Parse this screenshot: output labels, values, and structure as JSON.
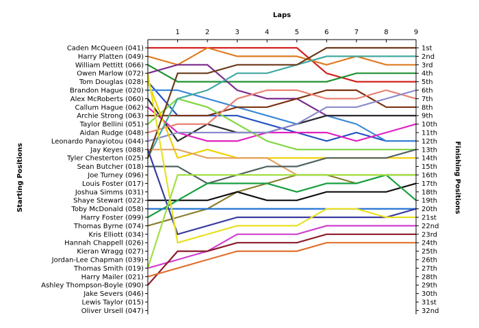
{
  "chart_data": {
    "type": "line",
    "title": "",
    "xlabel": "Laps",
    "ylabel_left": "Starting Positions",
    "ylabel_right": "Finishing Positions",
    "x_ticks": [
      1,
      2,
      3,
      4,
      5,
      6,
      7,
      8,
      9
    ],
    "xlim": [
      0,
      9
    ],
    "ylim": [
      1,
      32
    ],
    "y_inverted": true,
    "legend": "none",
    "starting_labels": [
      "Caden McQueen (041)",
      "Harry Platten (049)",
      "William Pettitt (066)",
      "Owen Marlow (072)",
      "Tom Douglas (028)",
      "Brandon Hague (020)",
      "Alex McRoberts (060)",
      "Callum Hague (062)",
      "Archie Strong (063)",
      "Taylor Bellini (051)",
      "Aidan Rudge (048)",
      "Leonardo Panayiotou (044)",
      "Jay Keyes (088)",
      "Tyler Chesterton (025)",
      "Sean Butcher (018)",
      "Joe Turney (096)",
      "Louis Foster (017)",
      "Joshua Simms (031)",
      "Shaye Stewart (022)",
      "Toby McDonald (058)",
      "Harry Foster (099)",
      "Thomas Byrne (074)",
      "Kris Elliott (034)",
      "Hannah Chappell (026)",
      "Kieran Wragg (027)",
      "Jordan-Lee Chapman (039)",
      "Thomas Smith (019)",
      "Harry Mailer (021)",
      "Ashley Thompson-Boyle (090)",
      "Jake Severs (046)",
      "Lewis Taylor (015)",
      "Oliver Ursell (047)"
    ],
    "finishing_labels": [
      "1st",
      "2nd",
      "3rd",
      "4th",
      "5th",
      "6th",
      "7th",
      "8th",
      "9th",
      "10th",
      "11th",
      "12th",
      "13th",
      "14th",
      "15th",
      "16th",
      "17th",
      "18th",
      "19th",
      "20th",
      "21st",
      "22nd",
      "23rd",
      "24th",
      "25th",
      "26th",
      "27th",
      "28th",
      "29th",
      "30th",
      "31st",
      "32nd"
    ],
    "series": [
      {
        "color": "#d22020",
        "positions": [
          1,
          1,
          1,
          1,
          1,
          1,
          4,
          5,
          5,
          5
        ]
      },
      {
        "color": "#e07b20",
        "positions": [
          2,
          3,
          1,
          2,
          2,
          2,
          3,
          2,
          3,
          3
        ]
      },
      {
        "color": "#1e9030",
        "positions": [
          3,
          5,
          5,
          5,
          5,
          5,
          5,
          4,
          4,
          4
        ]
      },
      {
        "color": "#7a2a8a",
        "positions": [
          4,
          3,
          3,
          6,
          7,
          7,
          9,
          9,
          9,
          9
        ]
      },
      {
        "color": "#2050c0",
        "positions": [
          5,
          9,
          9,
          9,
          10,
          11,
          12,
          11,
          12,
          12
        ]
      },
      {
        "color": "#3a88d8",
        "positions": [
          6,
          6,
          7,
          8,
          9,
          10,
          9,
          10,
          12,
          12
        ]
      },
      {
        "color": "#2a2a2a",
        "positions": [
          7,
          12,
          10,
          11,
          11,
          10,
          9,
          9,
          9,
          9
        ]
      },
      {
        "color": "#e020c0",
        "positions": [
          8,
          11,
          12,
          12,
          11,
          11,
          11,
          12,
          11,
          10
        ]
      },
      {
        "color": "#7a3010",
        "positions": [
          9,
          9,
          9,
          8,
          8,
          7,
          6,
          6,
          8,
          8
        ]
      },
      {
        "color": "#7fd640",
        "positions": [
          10,
          7,
          8,
          10,
          12,
          13,
          13,
          13,
          13,
          13
        ]
      },
      {
        "color": "#e88070",
        "positions": [
          11,
          10,
          10,
          7,
          6,
          6,
          7,
          7,
          6,
          7
        ]
      },
      {
        "color": "#8a8acc",
        "positions": [
          12,
          11,
          11,
          11,
          11,
          10,
          8,
          8,
          7,
          6
        ]
      },
      {
        "color": "#f0d000",
        "positions": [
          5,
          14,
          13,
          14,
          14,
          14,
          14,
          14,
          14,
          14
        ]
      },
      {
        "color": "#40a8a0",
        "positions": [
          14,
          7,
          6,
          4,
          4,
          3,
          2,
          2,
          2,
          2
        ]
      },
      {
        "color": "#e0a060",
        "positions": [
          13,
          13,
          14,
          14,
          14,
          16,
          16,
          16,
          16,
          16
        ]
      },
      {
        "color": "#6a3a1a",
        "positions": [
          14,
          4,
          4,
          3,
          3,
          3,
          1,
          1,
          1,
          1
        ]
      },
      {
        "color": "#506060",
        "positions": [
          15,
          15,
          17,
          16,
          15,
          15,
          14,
          14,
          14,
          13
        ]
      },
      {
        "color": "#8a8030",
        "positions": [
          22,
          21,
          20,
          18,
          17,
          16,
          16,
          17,
          16,
          16
        ]
      },
      {
        "color": "#101010",
        "positions": [
          19,
          19,
          19,
          18,
          19,
          19,
          18,
          18,
          18,
          17
        ]
      },
      {
        "color": "#18a040",
        "positions": [
          21,
          19,
          17,
          17,
          17,
          18,
          17,
          17,
          16,
          19
        ]
      },
      {
        "color": "#2070d0",
        "positions": [
          20,
          20,
          20,
          20,
          20,
          20,
          20,
          20,
          20,
          20
        ]
      },
      {
        "color": "#3a3aa0",
        "positions": [
          13,
          23,
          22,
          21,
          21,
          21,
          21,
          21,
          21,
          20
        ]
      },
      {
        "color": "#e8e020",
        "positions": [
          4,
          24,
          23,
          22,
          22,
          22,
          20,
          20,
          21,
          21
        ]
      },
      {
        "color": "#d040d0",
        "positions": [
          27,
          26,
          25,
          23,
          23,
          23,
          22,
          22,
          22,
          22
        ]
      },
      {
        "color": "#8a1a2a",
        "positions": [
          29,
          25,
          25,
          24,
          24,
          24,
          23,
          23,
          23,
          23
        ]
      },
      {
        "color": "#e07030",
        "positions": [
          28,
          27,
          26,
          25,
          25,
          25,
          24,
          24,
          24,
          24
        ]
      },
      {
        "color": "#a0e040",
        "positions": [
          27,
          16,
          16,
          16,
          16,
          16,
          16,
          16,
          16,
          16
        ]
      }
    ]
  }
}
